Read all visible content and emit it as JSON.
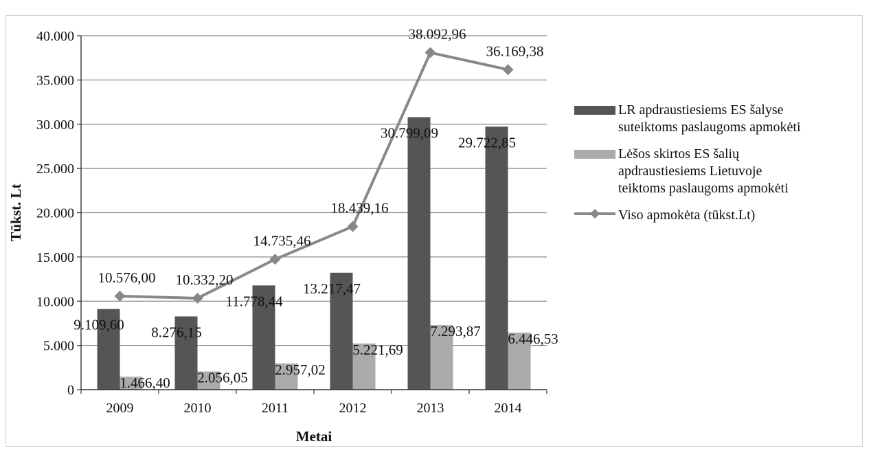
{
  "chart_data": {
    "type": "bar",
    "title": "",
    "xlabel": "Metai",
    "ylabel": "Tūkst. Lt",
    "ylim": [
      0,
      40000
    ],
    "y_ticks": [
      "0",
      "5.000",
      "10.000",
      "15.000",
      "20.000",
      "25.000",
      "30.000",
      "35.000",
      "40.000"
    ],
    "categories": [
      "2009",
      "2010",
      "2011",
      "2012",
      "2013",
      "2014"
    ],
    "grid": "horizontal",
    "legend_position": "right",
    "series": [
      {
        "name": "LR apdraustiesiems ES šalyse\nsuteiktoms paslaugoms apmokėti",
        "type": "bar",
        "color": "#555555",
        "values": [
          9109.6,
          8276.15,
          11778.44,
          13217.47,
          30799.09,
          29722.85
        ],
        "labels": [
          "9.109,60",
          "8.276,15",
          "11.778,44",
          "13.217,47",
          "30.799,09",
          "29.722,85"
        ]
      },
      {
        "name": "Lėšos skirtos ES šalių\napdraustiesiems Lietuvoje\nteiktoms paslaugoms apmokėti",
        "type": "bar",
        "color": "#ababab",
        "values": [
          1466.4,
          2056.05,
          2957.02,
          5221.69,
          7293.87,
          6446.53
        ],
        "labels": [
          "1.466,40",
          "2.056,05",
          "2.957,02",
          "5.221,69",
          "7.293,87",
          "6.446,53"
        ]
      },
      {
        "name": "Viso apmokėta (tūkst.Lt)",
        "type": "line",
        "color": "#888888",
        "values": [
          10576.0,
          10332.2,
          14735.46,
          18439.16,
          38092.96,
          36169.38
        ],
        "labels": [
          "10.576,00",
          "10.332,20",
          "14.735,46",
          "18.439,16",
          "38.092,96",
          "36.169,38"
        ]
      }
    ]
  }
}
